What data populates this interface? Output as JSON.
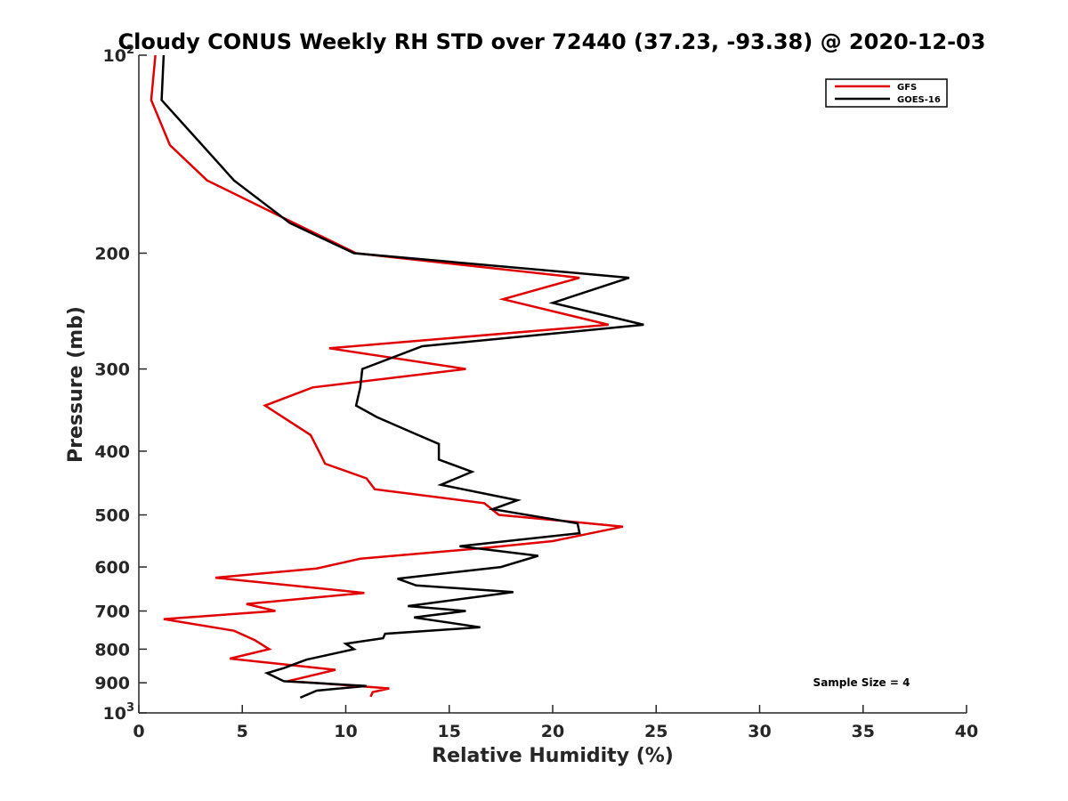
{
  "chart_data": {
    "type": "line",
    "title": "Cloudy CONUS Weekly RH STD over 72440 (37.23, -93.38) @ 2020-12-03",
    "xlabel": "Relative Humidity (%)",
    "ylabel": "Pressure (mb)",
    "xlim": [
      0,
      40
    ],
    "ylim": [
      100,
      1000
    ],
    "y_scale": "log",
    "y_reversed": true,
    "grid": false,
    "legend_position": "top-right",
    "x_ticks": [
      "0",
      "5",
      "10",
      "15",
      "20",
      "25",
      "30",
      "35",
      "40"
    ],
    "y_ticks": [
      {
        "value": 100,
        "label": "10",
        "sup": "2"
      },
      {
        "value": 200,
        "label": "200",
        "sup": ""
      },
      {
        "value": 300,
        "label": "300",
        "sup": ""
      },
      {
        "value": 400,
        "label": "400",
        "sup": ""
      },
      {
        "value": 500,
        "label": "500",
        "sup": ""
      },
      {
        "value": 600,
        "label": "600",
        "sup": ""
      },
      {
        "value": 700,
        "label": "700",
        "sup": ""
      },
      {
        "value": 800,
        "label": "800",
        "sup": ""
      },
      {
        "value": 900,
        "label": "900",
        "sup": ""
      },
      {
        "value": 1000,
        "label": "10",
        "sup": "3"
      }
    ],
    "series": [
      {
        "name": "GFS",
        "color": "#e00000",
        "points": [
          [
            0.8,
            100
          ],
          [
            0.6,
            117
          ],
          [
            1.5,
            137
          ],
          [
            3.3,
            155
          ],
          [
            7.5,
            180
          ],
          [
            10.5,
            200
          ],
          [
            21.3,
            218
          ],
          [
            17.6,
            235
          ],
          [
            22.7,
            257
          ],
          [
            9.2,
            279
          ],
          [
            15.8,
            300
          ],
          [
            8.4,
            320
          ],
          [
            6.1,
            341
          ],
          [
            8.3,
            378
          ],
          [
            8.7,
            400
          ],
          [
            9.0,
            418
          ],
          [
            11.0,
            440
          ],
          [
            11.4,
            457
          ],
          [
            16.7,
            480
          ],
          [
            17.4,
            500
          ],
          [
            23.4,
            521
          ],
          [
            20.0,
            548
          ],
          [
            16.5,
            562
          ],
          [
            10.7,
            583
          ],
          [
            8.6,
            603
          ],
          [
            3.7,
            623
          ],
          [
            10.9,
            657
          ],
          [
            5.2,
            683
          ],
          [
            6.6,
            700
          ],
          [
            1.2,
            720
          ],
          [
            4.6,
            750
          ],
          [
            5.6,
            775
          ],
          [
            6.3,
            800
          ],
          [
            4.4,
            827
          ],
          [
            9.5,
            860
          ],
          [
            7.2,
            895
          ],
          [
            8.5,
            900
          ],
          [
            12.1,
            918
          ],
          [
            11.3,
            930
          ],
          [
            11.2,
            945
          ]
        ]
      },
      {
        "name": "GOES-16",
        "color": "#000000",
        "points": [
          [
            1.2,
            100
          ],
          [
            1.1,
            117
          ],
          [
            4.6,
            155
          ],
          [
            7.3,
            180
          ],
          [
            10.4,
            200
          ],
          [
            23.7,
            218
          ],
          [
            20.0,
            238
          ],
          [
            24.4,
            257
          ],
          [
            13.7,
            277
          ],
          [
            10.8,
            300
          ],
          [
            10.7,
            320
          ],
          [
            10.5,
            341
          ],
          [
            11.5,
            355
          ],
          [
            13.4,
            377
          ],
          [
            14.5,
            390
          ],
          [
            14.5,
            412
          ],
          [
            16.1,
            430
          ],
          [
            14.6,
            450
          ],
          [
            18.3,
            475
          ],
          [
            17.1,
            490
          ],
          [
            21.2,
            515
          ],
          [
            21.3,
            533
          ],
          [
            15.5,
            558
          ],
          [
            19.3,
            577
          ],
          [
            17.5,
            600
          ],
          [
            12.5,
            625
          ],
          [
            13.4,
            640
          ],
          [
            18.1,
            655
          ],
          [
            13.0,
            688
          ],
          [
            15.8,
            700
          ],
          [
            13.3,
            716
          ],
          [
            16.5,
            741
          ],
          [
            11.9,
            758
          ],
          [
            11.8,
            770
          ],
          [
            10.0,
            785
          ],
          [
            10.4,
            800
          ],
          [
            8.1,
            830
          ],
          [
            7.0,
            855
          ],
          [
            6.2,
            870
          ],
          [
            7.0,
            895
          ],
          [
            11.0,
            910
          ],
          [
            8.6,
            925
          ],
          [
            7.8,
            948
          ]
        ]
      }
    ],
    "annotation": "Sample Size = 4"
  }
}
